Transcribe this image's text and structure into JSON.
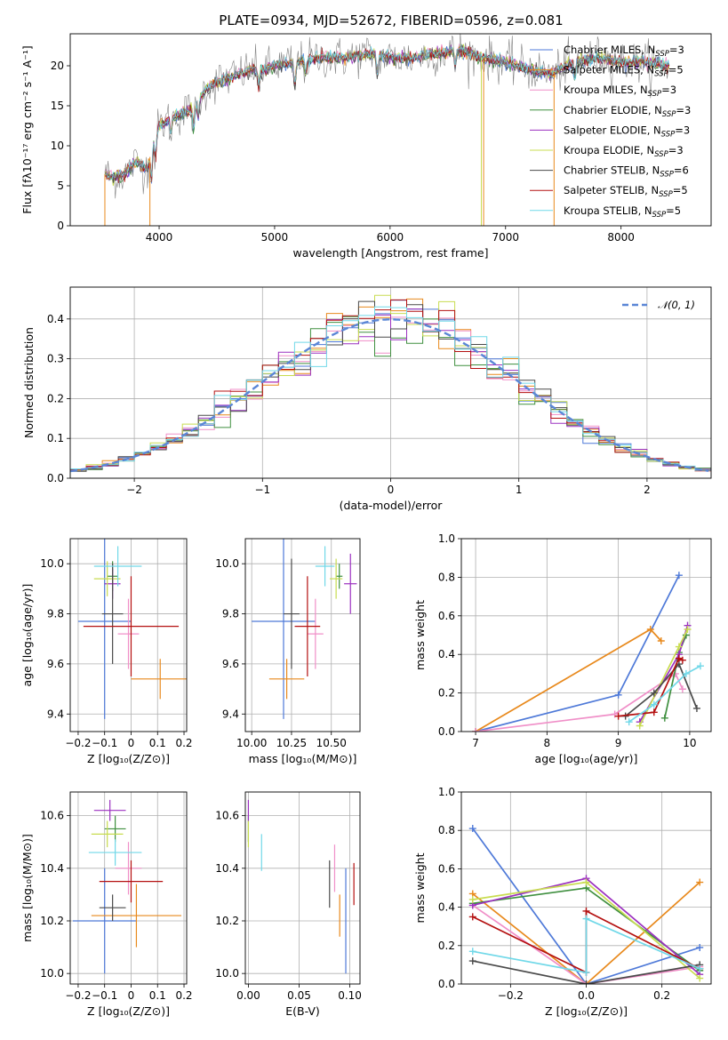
{
  "title": "PLATE=0934, MJD=52672, FIBERID=0596, z=0.081",
  "colors": {
    "Chabrier MILES": "#4e79d8",
    "Salpeter MILES": "#e8891c",
    "Kroupa MILES": "#f08fc8",
    "Chabrier ELODIE": "#3f8f3f",
    "Salpeter ELODIE": "#9b30c0",
    "Kroupa ELODIE": "#c8dc50",
    "Chabrier STELIB": "#4a4a4a",
    "Salpeter STELIB": "#b41010",
    "Kroupa STELIB": "#70d8e8"
  },
  "chart_data": [
    {
      "type": "line",
      "title": "PLATE=0934, MJD=52672, FIBERID=0596, z=0.081",
      "xlabel": "wavelength [Angstrom, rest frame]",
      "ylabel": "Flux [fλ10⁻¹⁷ erg cm⁻² s⁻¹ A⁻¹]",
      "xlim": [
        3230,
        8780
      ],
      "ylim": [
        0,
        24
      ],
      "xticks": [
        4000,
        5000,
        6000,
        7000,
        8000
      ],
      "yticks": [
        0,
        5,
        10,
        15,
        20
      ],
      "legend_position": "right",
      "legend": [
        {
          "series": "Chabrier MILES",
          "label": "Chabrier MILES, N",
          "sub": "SSP",
          "tail": "=3"
        },
        {
          "series": "Salpeter MILES",
          "label": "Salpeter MILES, N",
          "sub": "SSP",
          "tail": "=5"
        },
        {
          "series": "Kroupa MILES",
          "label": "Kroupa MILES, N",
          "sub": "SSP",
          "tail": "=3"
        },
        {
          "series": "Chabrier ELODIE",
          "label": "Chabrier ELODIE, N",
          "sub": "SSP",
          "tail": "=3"
        },
        {
          "series": "Salpeter ELODIE",
          "label": "Salpeter ELODIE, N",
          "sub": "SSP",
          "tail": "=3"
        },
        {
          "series": "Kroupa ELODIE",
          "label": "Kroupa ELODIE, N",
          "sub": "SSP",
          "tail": "=3"
        },
        {
          "series": "Chabrier STELIB",
          "label": "Chabrier STELIB, N",
          "sub": "SSP",
          "tail": "=6"
        },
        {
          "series": "Salpeter STELIB",
          "label": "Salpeter STELIB, N",
          "sub": "SSP",
          "tail": "=5"
        },
        {
          "series": "Kroupa STELIB",
          "label": "Kroupa STELIB, N",
          "sub": "SSP",
          "tail": "=5"
        }
      ],
      "continuum": [
        [
          3530,
          6.5
        ],
        [
          3600,
          6.0
        ],
        [
          3700,
          6.5
        ],
        [
          3800,
          8.0
        ],
        [
          3900,
          7.0
        ],
        [
          3950,
          11.0
        ],
        [
          4000,
          12.5
        ],
        [
          4100,
          13.5
        ],
        [
          4200,
          14.0
        ],
        [
          4300,
          14.8
        ],
        [
          4400,
          17.0
        ],
        [
          4500,
          18.0
        ],
        [
          4600,
          18.5
        ],
        [
          4700,
          19.0
        ],
        [
          4800,
          19.5
        ],
        [
          4900,
          19.5
        ],
        [
          5000,
          20.0
        ],
        [
          5200,
          20.5
        ],
        [
          5400,
          21.0
        ],
        [
          5600,
          21.0
        ],
        [
          5800,
          21.5
        ],
        [
          6000,
          21.0
        ],
        [
          6200,
          21.0
        ],
        [
          6400,
          21.5
        ],
        [
          6600,
          22.0
        ],
        [
          6800,
          21.0
        ],
        [
          7000,
          20.5
        ],
        [
          7200,
          19.5
        ],
        [
          7400,
          19.0
        ],
        [
          7600,
          20.5
        ],
        [
          7800,
          21.0
        ],
        [
          8000,
          20.5
        ],
        [
          8200,
          20.5
        ],
        [
          8400,
          20.0
        ]
      ]
    },
    {
      "type": "line",
      "xlabel": "(data-model)/error",
      "ylabel": "Normed distribution",
      "xlim": [
        -2.5,
        2.5
      ],
      "ylim": [
        0,
        0.48
      ],
      "xticks": [
        -2,
        -1,
        0,
        1,
        2
      ],
      "yticks": [
        0.0,
        0.1,
        0.2,
        0.3,
        0.4
      ],
      "legend": "𝒩(0, 1)",
      "normal_curve": {
        "mean": 0,
        "sd": 1
      },
      "histogram_bin_width": 0.125
    },
    {
      "type": "scatter",
      "xlabel": "Z [log₁₀(Z/Z⊙)]",
      "ylabel": "age  [log₁₀(age/yr)]",
      "xlim": [
        -0.23,
        0.21
      ],
      "ylim": [
        9.33,
        10.1
      ],
      "xticks": [
        -0.2,
        -0.1,
        0.0,
        0.1,
        0.2
      ],
      "yticks": [
        9.4,
        9.6,
        9.8,
        10.0
      ],
      "points": [
        {
          "series": "Chabrier MILES",
          "x": -0.1,
          "xerr": 0.1,
          "y": 9.77,
          "yerr": 0.39
        },
        {
          "series": "Salpeter MILES",
          "x": 0.11,
          "xerr": 0.11,
          "y": 9.54,
          "yerr": 0.08
        },
        {
          "series": "Kroupa MILES",
          "x": -0.01,
          "xerr": 0.04,
          "y": 9.72,
          "yerr": 0.14
        },
        {
          "series": "Chabrier ELODIE",
          "x": -0.07,
          "xerr": 0.02,
          "y": 9.95,
          "yerr": 0.06
        },
        {
          "series": "Salpeter ELODIE",
          "x": -0.07,
          "xerr": 0.03,
          "y": 9.92,
          "yerr": 0.06
        },
        {
          "series": "Kroupa ELODIE",
          "x": -0.09,
          "xerr": 0.05,
          "y": 9.94,
          "yerr": 0.07
        },
        {
          "series": "Chabrier STELIB",
          "x": -0.07,
          "xerr": 0.04,
          "y": 9.8,
          "yerr": 0.2
        },
        {
          "series": "Salpeter STELIB",
          "x": 0.0,
          "xerr": 0.18,
          "y": 9.75,
          "yerr": 0.2
        },
        {
          "series": "Kroupa STELIB",
          "x": -0.05,
          "xerr": 0.09,
          "y": 9.99,
          "yerr": 0.08
        }
      ]
    },
    {
      "type": "scatter",
      "xlabel": "mass [log₁₀(M/M⊙)]",
      "ylabel": "",
      "xlim": [
        9.96,
        10.68
      ],
      "ylim": [
        9.33,
        10.1
      ],
      "xticks": [
        10.0,
        10.25,
        10.5
      ],
      "xticklabels": [
        "10.00",
        "10.25",
        "10.50"
      ],
      "yticks": [
        9.4,
        9.6,
        9.8,
        10.0
      ],
      "points": [
        {
          "series": "Chabrier MILES",
          "x": 10.2,
          "xerr": 0.2,
          "y": 9.77,
          "yerr": 0.39
        },
        {
          "series": "Salpeter MILES",
          "x": 10.22,
          "xerr": 0.11,
          "y": 9.54,
          "yerr": 0.08
        },
        {
          "series": "Kroupa MILES",
          "x": 10.4,
          "xerr": 0.05,
          "y": 9.72,
          "yerr": 0.14
        },
        {
          "series": "Chabrier ELODIE",
          "x": 10.55,
          "xerr": 0.02,
          "y": 9.95,
          "yerr": 0.05
        },
        {
          "series": "Salpeter ELODIE",
          "x": 10.62,
          "xerr": 0.04,
          "y": 9.92,
          "yerr": 0.12
        },
        {
          "series": "Kroupa ELODIE",
          "x": 10.53,
          "xerr": 0.04,
          "y": 9.94,
          "yerr": 0.08
        },
        {
          "series": "Chabrier STELIB",
          "x": 10.25,
          "xerr": 0.05,
          "y": 9.8,
          "yerr": 0.22
        },
        {
          "series": "Salpeter STELIB",
          "x": 10.35,
          "xerr": 0.08,
          "y": 9.75,
          "yerr": 0.2
        },
        {
          "series": "Kroupa STELIB",
          "x": 10.46,
          "xerr": 0.06,
          "y": 9.99,
          "yerr": 0.08
        }
      ]
    },
    {
      "type": "line",
      "xlabel": "age  [log₁₀(age/yr)]",
      "ylabel": "mass weight",
      "xlim": [
        6.8,
        10.3
      ],
      "ylim": [
        0,
        1.0
      ],
      "xticks": [
        7,
        8,
        9,
        10
      ],
      "yticks": [
        0.0,
        0.2,
        0.4,
        0.6,
        0.8,
        1.0
      ],
      "series": [
        {
          "name": "Chabrier MILES",
          "x": [
            7.0,
            9.0,
            9.85
          ],
          "y": [
            0.0,
            0.19,
            0.81
          ]
        },
        {
          "name": "Salpeter MILES",
          "x": [
            7.0,
            9.45,
            9.6
          ],
          "y": [
            0.0,
            0.53,
            0.47
          ]
        },
        {
          "name": "Kroupa MILES",
          "x": [
            7.0,
            8.95,
            9.8,
            9.9
          ],
          "y": [
            0.0,
            0.09,
            0.3,
            0.22
          ]
        },
        {
          "name": "Chabrier ELODIE",
          "x": [
            9.65,
            9.85,
            9.95
          ],
          "y": [
            0.07,
            0.41,
            0.5
          ]
        },
        {
          "name": "Salpeter ELODIE",
          "x": [
            9.3,
            9.85,
            9.97
          ],
          "y": [
            0.05,
            0.4,
            0.55
          ]
        },
        {
          "name": "Kroupa ELODIE",
          "x": [
            9.3,
            9.85,
            9.97
          ],
          "y": [
            0.03,
            0.44,
            0.53
          ]
        },
        {
          "name": "Chabrier STELIB",
          "x": [
            9.1,
            9.5,
            9.85,
            10.1
          ],
          "y": [
            0.08,
            0.2,
            0.35,
            0.12
          ]
        },
        {
          "name": "Salpeter STELIB",
          "x": [
            9.0,
            9.5,
            9.85,
            9.9
          ],
          "y": [
            0.08,
            0.1,
            0.38,
            0.37
          ]
        },
        {
          "name": "Kroupa STELIB",
          "x": [
            9.15,
            9.5,
            9.95,
            10.15
          ],
          "y": [
            0.05,
            0.14,
            0.3,
            0.34
          ]
        }
      ]
    },
    {
      "type": "scatter",
      "xlabel": "Z [log₁₀(Z/Z⊙)]",
      "ylabel": "mass [log₁₀(M/M⊙)]",
      "xlim": [
        -0.23,
        0.21
      ],
      "ylim": [
        9.96,
        10.69
      ],
      "xticks": [
        -0.2,
        -0.1,
        0.0,
        0.1,
        0.2
      ],
      "yticks": [
        10.0,
        10.2,
        10.4,
        10.6
      ],
      "points": [
        {
          "series": "Chabrier MILES",
          "x": -0.1,
          "xerr": 0.12,
          "y": 10.2,
          "yerr": 0.2
        },
        {
          "series": "Salpeter MILES",
          "x": 0.02,
          "xerr": 0.17,
          "y": 10.22,
          "yerr": 0.12
        },
        {
          "series": "Kroupa MILES",
          "x": -0.01,
          "xerr": 0.05,
          "y": 10.4,
          "yerr": 0.1
        },
        {
          "series": "Chabrier ELODIE",
          "x": -0.06,
          "xerr": 0.04,
          "y": 10.55,
          "yerr": 0.05
        },
        {
          "series": "Salpeter ELODIE",
          "x": -0.08,
          "xerr": 0.06,
          "y": 10.62,
          "yerr": 0.04
        },
        {
          "series": "Kroupa ELODIE",
          "x": -0.09,
          "xerr": 0.06,
          "y": 10.53,
          "yerr": 0.05
        },
        {
          "series": "Chabrier STELIB",
          "x": -0.07,
          "xerr": 0.05,
          "y": 10.25,
          "yerr": 0.05
        },
        {
          "series": "Salpeter STELIB",
          "x": 0.0,
          "xerr": 0.12,
          "y": 10.35,
          "yerr": 0.08
        },
        {
          "series": "Kroupa STELIB",
          "x": -0.06,
          "xerr": 0.1,
          "y": 10.46,
          "yerr": 0.05
        }
      ]
    },
    {
      "type": "scatter",
      "xlabel": "E(B-V)",
      "ylabel": "",
      "xlim": [
        -0.003,
        0.11
      ],
      "ylim": [
        9.96,
        10.69
      ],
      "xticks": [
        0.0,
        0.05,
        0.1
      ],
      "xticklabels": [
        "0.00",
        "0.05",
        "0.10"
      ],
      "yticks": [
        10.0,
        10.2,
        10.4,
        10.6
      ],
      "points": [
        {
          "series": "Chabrier MILES",
          "x": 0.096,
          "xerr": 0,
          "y": 10.2,
          "yerr": 0.2
        },
        {
          "series": "Salpeter MILES",
          "x": 0.09,
          "xerr": 0,
          "y": 10.22,
          "yerr": 0.08
        },
        {
          "series": "Kroupa MILES",
          "x": 0.085,
          "xerr": 0,
          "y": 10.4,
          "yerr": 0.09
        },
        {
          "series": "Chabrier ELODIE",
          "x": 0.0,
          "xerr": 0,
          "y": 10.55,
          "yerr": 0.05
        },
        {
          "series": "Salpeter ELODIE",
          "x": 0.0,
          "xerr": 0,
          "y": 10.62,
          "yerr": 0.04
        },
        {
          "series": "Kroupa ELODIE",
          "x": 0.0,
          "xerr": 0,
          "y": 10.53,
          "yerr": 0.05
        },
        {
          "series": "Chabrier STELIB",
          "x": 0.08,
          "xerr": 0,
          "y": 10.34,
          "yerr": 0.09
        },
        {
          "series": "Salpeter STELIB",
          "x": 0.104,
          "xerr": 0,
          "y": 10.34,
          "yerr": 0.08
        },
        {
          "series": "Kroupa STELIB",
          "x": 0.013,
          "xerr": 0,
          "y": 10.46,
          "yerr": 0.07
        }
      ]
    },
    {
      "type": "line",
      "xlabel": "Z [log₁₀(Z/Z⊙)]",
      "ylabel": "mass weight",
      "xlim": [
        -0.33,
        0.33
      ],
      "ylim": [
        0,
        1.0
      ],
      "xticks": [
        -0.2,
        0.0,
        0.2
      ],
      "xticklabels": [
        "−0.2",
        "0.0",
        "0.2"
      ],
      "yticks": [
        0.0,
        0.2,
        0.4,
        0.6,
        0.8,
        1.0
      ],
      "series": [
        {
          "name": "Chabrier MILES",
          "x": [
            -0.3,
            0.0,
            0.3
          ],
          "y": [
            0.81,
            0.0,
            0.19
          ]
        },
        {
          "name": "Salpeter MILES",
          "x": [
            -0.3,
            0.0,
            0.3
          ],
          "y": [
            0.47,
            0.0,
            0.53
          ]
        },
        {
          "name": "Kroupa MILES",
          "x": [
            -0.3,
            0.0,
            0.3
          ],
          "y": [
            0.41,
            0.0,
            0.09
          ]
        },
        {
          "name": "Chabrier ELODIE",
          "x": [
            -0.3,
            0.0,
            0.3
          ],
          "y": [
            0.42,
            0.5,
            0.07
          ]
        },
        {
          "name": "Salpeter ELODIE",
          "x": [
            -0.3,
            0.0,
            0.3
          ],
          "y": [
            0.41,
            0.55,
            0.05
          ]
        },
        {
          "name": "Kroupa ELODIE",
          "x": [
            -0.3,
            0.0,
            0.3
          ],
          "y": [
            0.44,
            0.53,
            0.03
          ]
        },
        {
          "name": "Chabrier STELIB",
          "x": [
            -0.3,
            0.0,
            0.3
          ],
          "y": [
            0.12,
            0.0,
            0.1
          ]
        },
        {
          "name": "Salpeter STELIB",
          "x": [
            -0.3,
            0.0,
            0.0,
            0.3
          ],
          "y": [
            0.35,
            0.06,
            0.38,
            0.08
          ]
        },
        {
          "name": "Kroupa STELIB",
          "x": [
            -0.3,
            0.0,
            0.0,
            0.3
          ],
          "y": [
            0.17,
            0.06,
            0.34,
            0.08
          ]
        }
      ]
    }
  ]
}
